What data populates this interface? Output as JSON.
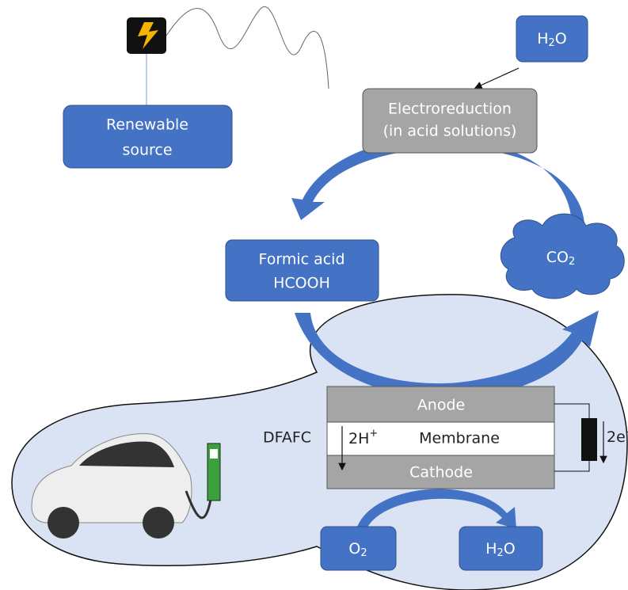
{
  "nodes": {
    "renewable": {
      "line1": "Renewable",
      "line2": "source"
    },
    "water_top": {
      "a": "H",
      "sub": "2",
      "b": "O"
    },
    "electro": {
      "line1": "Electroreduction",
      "line2": "(in acid solutions)"
    },
    "formic": {
      "line1": "Formic acid",
      "line2": "HCOOH"
    },
    "co2": {
      "a": "CO",
      "sub": "2"
    },
    "anode": "Anode",
    "membrane": "Membrane",
    "cathode": "Cathode",
    "proton": {
      "a": "2H",
      "sup": "+"
    },
    "electron": {
      "a": "2e",
      "sup": "-"
    },
    "dfafc": "DFAFC",
    "o2": {
      "a": "O",
      "sub": "2"
    },
    "water_bottom": {
      "a": "H",
      "sub": "2",
      "b": "O"
    }
  }
}
